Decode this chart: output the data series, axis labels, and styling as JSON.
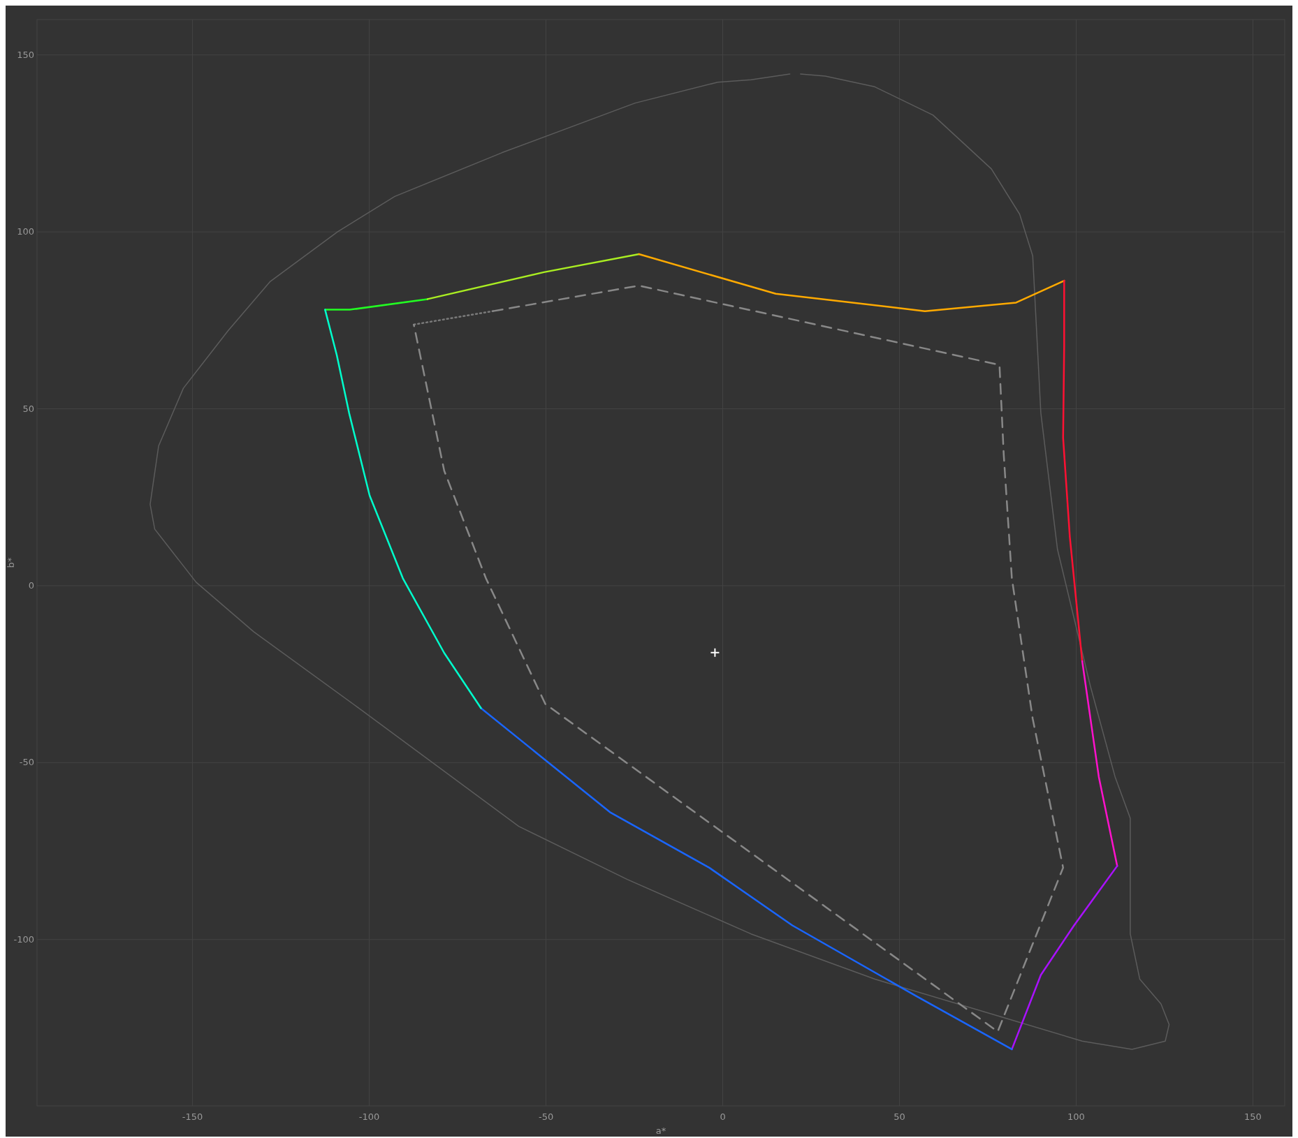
{
  "chart_data": {
    "type": "line",
    "xlabel": "a*",
    "ylabel": "b*",
    "xlim": [
      -194,
      159
    ],
    "ylim": [
      -147,
      160
    ],
    "xticks": [
      -150,
      -100,
      -50,
      0,
      50,
      100,
      150
    ],
    "yticks": [
      -100,
      -50,
      0,
      50,
      100,
      150
    ],
    "grid": true,
    "series": [
      {
        "color": "#5c5c5c",
        "line_style": "solid",
        "x": [
          19,
          8,
          -1.4,
          -24.8,
          -62.4,
          -92.8,
          -109,
          -128,
          -140,
          -152.6,
          -159.6,
          -162,
          -160.7,
          -149,
          -132.7,
          -102,
          -57.7,
          -27,
          8,
          43.1,
          78.3,
          101.7,
          115.8,
          125.2,
          126.3,
          124,
          118,
          115.3,
          115.3,
          111,
          104,
          94.7,
          90,
          87.7,
          84,
          76,
          59.5,
          43,
          29,
          22
        ],
        "values": [
          144.6,
          143,
          142.3,
          136.4,
          122.4,
          110,
          100,
          86,
          72,
          55.8,
          39.5,
          23,
          16,
          1,
          -13,
          -35.3,
          -68,
          -83,
          -98.4,
          -111.2,
          -121.7,
          -128.7,
          -131,
          -128.7,
          -124,
          -118.2,
          -111.2,
          -98.4,
          -65.7,
          -54,
          -28.3,
          10.3,
          48.8,
          93.2,
          105,
          117.8,
          133,
          141,
          144,
          144.6
        ]
      },
      {
        "color": "#22ff22",
        "line_style": "solid",
        "x": [
          -112.5,
          -105.5,
          -83.5
        ],
        "values": [
          78,
          78,
          81
        ]
      },
      {
        "color": "#aaee22",
        "line_style": "solid",
        "x": [
          -83.5,
          -50.6,
          -23.7
        ],
        "values": [
          81,
          88.6,
          93.7
        ]
      },
      {
        "color": "#ffaa00",
        "line_style": "solid",
        "x": [
          -23.7,
          15,
          57.2,
          83,
          96.6
        ],
        "values": [
          93.7,
          82.5,
          77.6,
          80,
          86.2
        ]
      },
      {
        "color": "#ff1133",
        "line_style": "solid",
        "x": [
          96.6,
          96.6,
          96.3,
          98.2,
          101.7
        ],
        "values": [
          86.2,
          67.5,
          41.8,
          13.8,
          -21.3
        ]
      },
      {
        "color": "#ff11cc",
        "line_style": "solid",
        "x": [
          101.7,
          106.4,
          111.6
        ],
        "values": [
          -21.3,
          -54,
          -79.2
        ]
      },
      {
        "color": "#aa11ff",
        "line_style": "solid",
        "x": [
          111.6,
          99.4,
          90,
          81.8
        ],
        "values": [
          -79.2,
          -96,
          -110,
          -131
        ]
      },
      {
        "color": "#1a66ff",
        "line_style": "solid",
        "x": [
          81.8,
          54.8,
          19.7,
          -3.8,
          -31.9,
          -53,
          -68.4
        ],
        "values": [
          -131,
          -116,
          -96,
          -79.7,
          -64,
          -47,
          -34.6
        ]
      },
      {
        "color": "#00ffcc",
        "line_style": "solid",
        "x": [
          -68.4,
          -78.8,
          -90.5,
          -99.9,
          -105.7,
          -109.2,
          -112.5
        ],
        "values": [
          -34.6,
          -19,
          2.1,
          25.5,
          48.8,
          65.2,
          78
        ]
      },
      {
        "color": "#7a7a7a",
        "line_style": "dotted",
        "x": [
          -87.4,
          -65
        ],
        "values": [
          73.8,
          77.6
        ]
      },
      {
        "color": "#888888",
        "line_style": "dashed",
        "x": [
          -65,
          -23.7,
          78.3,
          79.5,
          81.8,
          87.7,
          96.3,
          77.8,
          -50.2,
          -67,
          -78.8,
          -87.4
        ],
        "values": [
          77.6,
          84.8,
          62.4,
          37.1,
          2.1,
          -37.6,
          -79.7,
          -126,
          -33.4,
          2.1,
          32.5,
          73.8
        ]
      },
      {
        "type": "scatter",
        "marker": "cross",
        "color": "#ffffff",
        "x": [
          -2.2
        ],
        "values": [
          -18.9
        ]
      }
    ]
  }
}
